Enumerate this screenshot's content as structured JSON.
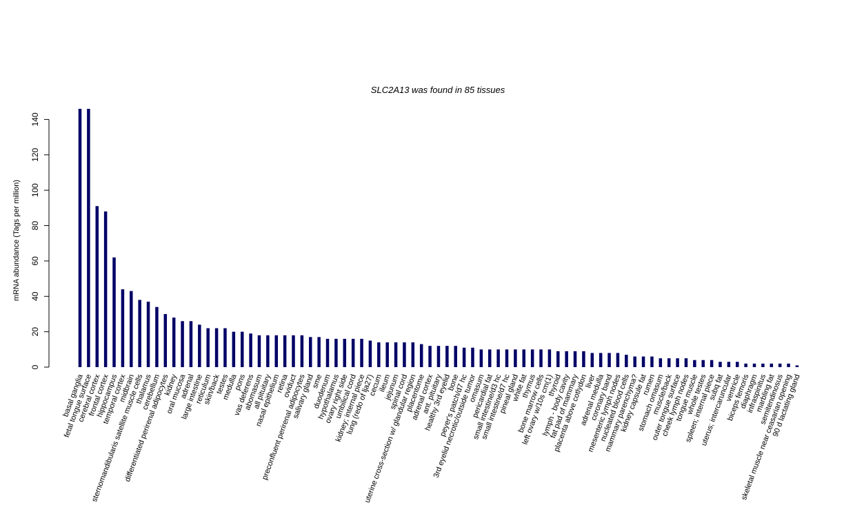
{
  "chart_data": {
    "type": "bar",
    "title": "SLC2A13  was found in  85  tissues",
    "ylabel": "mRNA abundance (Tags per million)",
    "xlabel": "",
    "ylim": [
      0,
      146
    ],
    "yticks": [
      0,
      20,
      40,
      60,
      80,
      100,
      120,
      140
    ],
    "bar_color": "#000066",
    "grid": false,
    "categories": [
      "basal ganglia",
      "fetal tongue surface",
      "cerebral cortex",
      "frontal cortex",
      "hippocampus",
      "temporal cortex",
      "midbrain",
      "sternomandibularis satellite muscle cells",
      "thalamus",
      "cerebellum",
      "differentiated perirenal adipocytes",
      "kidney",
      "oral mucosa",
      "adrenal",
      "large intestine",
      "reticulum",
      "skin/back",
      "testes",
      "medulla",
      "pons",
      "vas deferens",
      "abomasum",
      "all pituitary",
      "nasal epithelium",
      "retina",
      "oviduct",
      "preconfluent perirenal adipocytes",
      "salivary gland",
      "sme",
      "duodenum",
      "hypothalamus",
      "ovary right side",
      "umbilical cord",
      "kidney; internal piece",
      "lung (redo of lja27)",
      "cecum",
      "ileum",
      "jejunum",
      "spinal cord",
      "uterine cross-section w/ glandular region",
      "placentome",
      "adrenal cortex",
      "ant. pituitary",
      "healthy 3rd eyelid",
      "bone",
      "peyer's patch/d7 hc",
      "3rd eyelid necrotic/outside tumor",
      "omasum",
      "pericardial fat",
      "small intestine/d3 hc",
      "small intestine/d7 hc",
      "pineal gland",
      "white fat",
      "thymus",
      "bone marrow cells",
      "left ovary w/10s cm(1)",
      "thyroid",
      "lymph - body cavity",
      "fat pad of mammary",
      "placenta above cotlydon",
      "liver",
      "adrenal medulla",
      "coronary band",
      "mesenteric lymph nodes",
      "nucleated blood cells",
      "mammary parenchyma?",
      "kidney capsule fat",
      "rumen",
      "stomach omasum",
      "muscle/back",
      "outer tongue surface",
      "cheek lymph nodes",
      "tongue muscle",
      "whole testes",
      "spleen; internal piece",
      "subq fat",
      "uterus; intercaruncular",
      "ventricle",
      "biceps femoris",
      "diaphragm",
      "infraspinitus",
      "marbling fat",
      "semitendinosus",
      "skeletal muscle near ceasarian opening",
      "90 d lactating gland"
    ],
    "values": [
      146,
      146,
      91,
      88,
      62,
      44,
      43,
      38,
      37,
      34,
      30,
      28,
      26,
      26,
      24,
      22,
      22,
      22,
      20,
      20,
      19,
      18,
      18,
      18,
      18,
      18,
      18,
      17,
      17,
      16,
      16,
      16,
      16,
      16,
      15,
      14,
      14,
      14,
      14,
      14,
      13,
      12,
      12,
      12,
      12,
      11,
      11,
      10,
      10,
      10,
      10,
      10,
      10,
      10,
      10,
      10,
      9,
      9,
      9,
      9,
      8,
      8,
      8,
      8,
      7,
      6,
      6,
      6,
      5,
      5,
      5,
      5,
      4,
      4,
      4,
      3,
      3,
      3,
      2,
      2,
      2,
      2,
      2,
      2,
      1
    ]
  }
}
